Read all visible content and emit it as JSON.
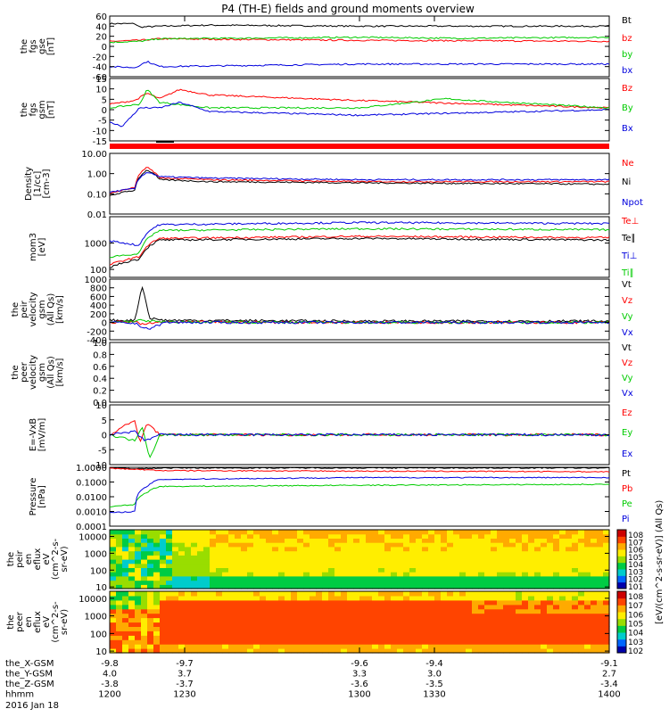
{
  "title": "P4 (TH-E) fields and ground moments overview",
  "colors": {
    "black": "#000000",
    "red": "#ff0000",
    "green": "#00cc00",
    "blue": "#0000dd"
  },
  "chart_data": [
    {
      "type": "line",
      "ylabel": [
        "the",
        "fgs",
        "gse",
        "[nT]"
      ],
      "ylim": [
        -60,
        60
      ],
      "yticks": [
        "60",
        "40",
        "20",
        "0",
        "-20",
        "-40",
        "-60"
      ],
      "legend": [
        {
          "label": "Bt",
          "color": "black"
        },
        {
          "label": "bz",
          "color": "red"
        },
        {
          "label": "by",
          "color": "green"
        },
        {
          "label": "bx",
          "color": "blue"
        }
      ],
      "series": [
        {
          "name": "Bt",
          "color": "black",
          "x": [
            1200,
            1210,
            1212,
            1220,
            1240,
            1300,
            1340,
            1400
          ],
          "y": [
            45,
            45,
            38,
            40,
            42,
            40,
            40,
            40
          ]
        },
        {
          "name": "bz",
          "color": "red",
          "x": [
            1200,
            1212,
            1220,
            1300,
            1400
          ],
          "y": [
            10,
            12,
            15,
            12,
            10
          ]
        },
        {
          "name": "by",
          "color": "green",
          "x": [
            1200,
            1212,
            1220,
            1300,
            1340,
            1400
          ],
          "y": [
            8,
            10,
            15,
            18,
            16,
            18
          ]
        },
        {
          "name": "bx",
          "color": "blue",
          "x": [
            1200,
            1210,
            1215,
            1220,
            1300,
            1400
          ],
          "y": [
            -40,
            -42,
            -30,
            -40,
            -35,
            -35
          ]
        }
      ]
    },
    {
      "type": "line",
      "ylabel": [
        "the",
        "fgs",
        "gsm",
        "[nT]"
      ],
      "ylim": [
        -18,
        16
      ],
      "yticks": [
        "15",
        "10",
        "5",
        "0",
        "-5",
        "-10",
        "-15"
      ],
      "legend": [
        {
          "label": "Bz",
          "color": "red"
        },
        {
          "label": "By",
          "color": "green"
        },
        {
          "label": "Bx",
          "color": "blue"
        }
      ],
      "series": [
        {
          "name": "Bz",
          "color": "red",
          "x": [
            1200,
            1210,
            1215,
            1220,
            1228,
            1240,
            1300,
            1400
          ],
          "y": [
            2,
            4,
            8,
            5,
            10,
            7,
            4,
            0
          ]
        },
        {
          "name": "By",
          "color": "green",
          "x": [
            1200,
            1212,
            1215,
            1220,
            1240,
            1300,
            1335,
            1345,
            1400
          ],
          "y": [
            0,
            2,
            10,
            3,
            0,
            0,
            5,
            4,
            0
          ]
        },
        {
          "name": "Bx",
          "color": "blue",
          "x": [
            1200,
            1205,
            1212,
            1220,
            1228,
            1240,
            1300,
            1400
          ],
          "y": [
            -8,
            -10,
            0,
            0,
            3,
            -2,
            -4,
            -1
          ]
        }
      ]
    },
    {
      "type": "line",
      "ylabel": [
        "Density",
        "[1/cc]",
        "[cm-3]"
      ],
      "yscale": "log",
      "ylim": [
        0.01,
        10
      ],
      "yticks": [
        "10.00",
        "1.00",
        "0.10",
        "0.01"
      ],
      "legend": [
        {
          "label": "Ne",
          "color": "red"
        },
        {
          "label": "Ni",
          "color": "black"
        },
        {
          "label": "Npot",
          "color": "blue"
        }
      ],
      "series": [
        {
          "name": "Ne",
          "color": "red",
          "x": [
            1200,
            1210,
            1215,
            1220,
            1240,
            1300,
            1400
          ],
          "y": [
            0.1,
            0.2,
            2.0,
            0.6,
            0.5,
            0.4,
            0.4
          ]
        },
        {
          "name": "Ni",
          "color": "black",
          "x": [
            1200,
            1210,
            1215,
            1220,
            1240,
            1300,
            1400
          ],
          "y": [
            0.08,
            0.15,
            1.5,
            0.5,
            0.4,
            0.35,
            0.3
          ]
        },
        {
          "name": "Npot",
          "color": "blue",
          "x": [
            1200,
            1210,
            1215,
            1220,
            1240,
            1300,
            1400
          ],
          "y": [
            0.12,
            0.18,
            1.2,
            0.7,
            0.6,
            0.5,
            0.5
          ]
        }
      ]
    },
    {
      "type": "line",
      "ylabel": [
        "mom3",
        "[eV]"
      ],
      "yscale": "log",
      "ylim": [
        50,
        10000
      ],
      "yticks": [
        "1000",
        "100"
      ],
      "legend": [
        {
          "label": "Te⊥",
          "color": "red"
        },
        {
          "label": "Te∥",
          "color": "black"
        },
        {
          "label": "Ti⊥",
          "color": "blue"
        },
        {
          "label": "Ti∥",
          "color": "green"
        }
      ],
      "series": [
        {
          "name": "Te⊥",
          "color": "red",
          "x": [
            1200,
            1212,
            1220,
            1300,
            1400
          ],
          "y": [
            150,
            300,
            1500,
            1800,
            1600
          ]
        },
        {
          "name": "Te∥",
          "color": "black",
          "x": [
            1200,
            1212,
            1220,
            1300,
            1400
          ],
          "y": [
            120,
            250,
            1300,
            1500,
            1300
          ]
        },
        {
          "name": "Ti⊥",
          "color": "blue",
          "x": [
            1200,
            1212,
            1220,
            1300,
            1400
          ],
          "y": [
            1200,
            800,
            5000,
            6000,
            5500
          ]
        },
        {
          "name": "Ti∥",
          "color": "green",
          "x": [
            1200,
            1212,
            1220,
            1300,
            1400
          ],
          "y": [
            300,
            400,
            3000,
            3500,
            3200
          ]
        }
      ]
    },
    {
      "type": "line",
      "ylabel": [
        "the",
        "peir",
        "velocity",
        "gsm",
        "(All Qs)",
        "[km/s]"
      ],
      "ylim": [
        -400,
        1000
      ],
      "yticks": [
        "1000",
        "800",
        "600",
        "400",
        "200",
        "0",
        "-200",
        "-400"
      ],
      "legend": [
        {
          "label": "Vt",
          "color": "black"
        },
        {
          "label": "Vz",
          "color": "red"
        },
        {
          "label": "Vy",
          "color": "green"
        },
        {
          "label": "Vx",
          "color": "blue"
        }
      ],
      "series": [
        {
          "name": "Vt",
          "color": "black",
          "x": [
            1200,
            1210,
            1213,
            1216,
            1222,
            1300,
            1400
          ],
          "y": [
            50,
            50,
            850,
            100,
            50,
            30,
            30
          ]
        },
        {
          "name": "Vz",
          "color": "red",
          "x": [
            1200,
            1210,
            1213,
            1220,
            1300,
            1400
          ],
          "y": [
            0,
            20,
            -50,
            10,
            0,
            0
          ]
        },
        {
          "name": "Vy",
          "color": "green",
          "x": [
            1200,
            1210,
            1213,
            1220,
            1300,
            1400
          ],
          "y": [
            0,
            30,
            50,
            10,
            0,
            0
          ]
        },
        {
          "name": "Vx",
          "color": "blue",
          "x": [
            1200,
            1210,
            1213,
            1216,
            1222,
            1300,
            1400
          ],
          "y": [
            0,
            -20,
            -100,
            -150,
            0,
            0,
            0
          ]
        }
      ]
    },
    {
      "type": "line",
      "ylabel": [
        "the",
        "peer",
        "velocity",
        "gsm",
        "(All Qs)",
        "[km/s]"
      ],
      "ylim": [
        0,
        1
      ],
      "yticks": [
        "1.0",
        "0.8",
        "0.6",
        "0.4",
        "0.2",
        "0.0"
      ],
      "legend": [
        {
          "label": "Vt",
          "color": "black"
        },
        {
          "label": "Vz",
          "color": "red"
        },
        {
          "label": "Vy",
          "color": "green"
        },
        {
          "label": "Vx",
          "color": "blue"
        }
      ],
      "series": []
    },
    {
      "type": "line",
      "ylabel": [
        "E=-VxB",
        "[mV/m]"
      ],
      "ylim": [
        -10,
        10
      ],
      "yticks": [
        "10",
        "5",
        "0",
        "-5",
        "-10"
      ],
      "legend": [
        {
          "label": "Ez",
          "color": "red"
        },
        {
          "label": "Ey",
          "color": "green"
        },
        {
          "label": "Ex",
          "color": "blue"
        }
      ],
      "series": [
        {
          "name": "Ez",
          "color": "red",
          "x": [
            1200,
            1210,
            1212,
            1215,
            1220,
            1300,
            1400
          ],
          "y": [
            0,
            5,
            -3,
            4,
            0,
            0,
            0
          ]
        },
        {
          "name": "Ey",
          "color": "green",
          "x": [
            1200,
            1210,
            1213,
            1216,
            1220,
            1300,
            1400
          ],
          "y": [
            0,
            -2,
            3,
            -8,
            0,
            0,
            0
          ]
        },
        {
          "name": "Ex",
          "color": "blue",
          "x": [
            1200,
            1210,
            1214,
            1220,
            1300,
            1400
          ],
          "y": [
            0,
            1,
            -2,
            0,
            0,
            0
          ]
        }
      ]
    },
    {
      "type": "line",
      "ylabel": [
        "Pressure",
        "[nPa]"
      ],
      "yscale": "log",
      "ylim": [
        0.0001,
        1
      ],
      "yticks": [
        "1.0000",
        "0.1000",
        "0.0100",
        "0.0010",
        "0.0001"
      ],
      "legend": [
        {
          "label": "Pt",
          "color": "black"
        },
        {
          "label": "Pb",
          "color": "red"
        },
        {
          "label": "Pe",
          "color": "green"
        },
        {
          "label": "Pi",
          "color": "blue"
        }
      ],
      "series": [
        {
          "name": "Pt",
          "color": "black",
          "x": [
            1200,
            1213,
            1220,
            1300,
            1400
          ],
          "y": [
            0.9,
            0.8,
            0.9,
            0.9,
            0.9
          ]
        },
        {
          "name": "Pb",
          "color": "red",
          "x": [
            1200,
            1213,
            1220,
            1300,
            1400
          ],
          "y": [
            0.85,
            0.7,
            0.6,
            0.55,
            0.5
          ]
        },
        {
          "name": "Pe",
          "color": "green",
          "x": [
            1200,
            1210,
            1215,
            1220,
            1300,
            1400
          ],
          "y": [
            0.002,
            0.003,
            0.02,
            0.05,
            0.06,
            0.07
          ]
        },
        {
          "name": "Pi",
          "color": "blue",
          "x": [
            1200,
            1210,
            1215,
            1220,
            1300,
            1400
          ],
          "y": [
            0.0008,
            0.001,
            0.05,
            0.15,
            0.2,
            0.2
          ]
        }
      ]
    },
    {
      "type": "heatmap",
      "ylabel": [
        "the",
        "peir",
        "en",
        "eflux",
        "eV",
        "(cm^2-s-",
        "sr-eV)"
      ],
      "yscale": "log",
      "ylim": [
        8,
        25000
      ],
      "yticks": [
        "10000",
        "1000",
        "100",
        "10"
      ],
      "colorbar_ticks": [
        "10^8",
        "10^7",
        "10^6",
        "10^5",
        "10^4",
        "10^3",
        "10^2",
        "10^1"
      ],
      "colorbar_label": "[eV/(cm^2-s-sr-eV)] (All Qs)"
    },
    {
      "type": "heatmap",
      "ylabel": [
        "the",
        "peer",
        "en",
        "eflux",
        "eV",
        "(cm^2-s-",
        "sr-eV)"
      ],
      "yscale": "log",
      "ylim": [
        8,
        25000
      ],
      "yticks": [
        "10000",
        "1000",
        "100",
        "10"
      ],
      "colorbar_ticks": [
        "10^8",
        "10^7",
        "10^6",
        "10^5",
        "10^4",
        "10^3",
        "10^2"
      ],
      "colorbar_label": "[eV/(cm^2-s-sr-eV)] (All Qs)"
    }
  ],
  "xaxis": {
    "rows": [
      {
        "label": "the_X-GSM",
        "values": [
          "-9.8",
          "-9.7",
          "-9.6",
          "-9.4",
          "-9.1"
        ]
      },
      {
        "label": "the_Y-GSM",
        "values": [
          "4.0",
          "3.7",
          "3.3",
          "3.0",
          "2.7"
        ]
      },
      {
        "label": "the_Z-GSM",
        "values": [
          "-3.8",
          "-3.7",
          "-3.6",
          "-3.5",
          "-3.4"
        ]
      },
      {
        "label": "hhmm",
        "values": [
          "1200",
          "1230",
          "1300",
          "1330",
          "1400"
        ]
      }
    ],
    "date": "2016 Jan 18"
  }
}
